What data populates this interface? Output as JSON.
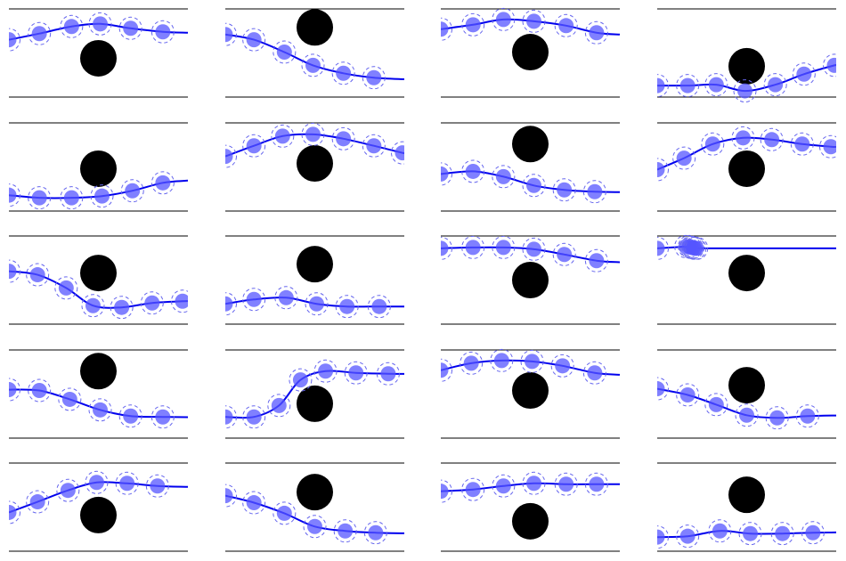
{
  "chart_data": {
    "type": "scatter",
    "description_free": true,
    "layout": {
      "rows": 5,
      "cols": 4
    },
    "colors": {
      "trajectory": "#0000ee",
      "disc_fill": "#5555ff",
      "disc_ring": "#6666ee",
      "obstacle": "#000000",
      "boundary": "#000000"
    },
    "x_range": [
      0,
      1
    ],
    "y_range": [
      0,
      1
    ],
    "panels": [
      {
        "name": "r1c1",
        "obstacle": [
          0.5,
          0.44
        ],
        "discs": [
          [
            0.0,
            0.65
          ],
          [
            0.17,
            0.72
          ],
          [
            0.35,
            0.8
          ],
          [
            0.51,
            0.83
          ],
          [
            0.68,
            0.78
          ],
          [
            0.86,
            0.74
          ]
        ]
      },
      {
        "name": "r1c2",
        "obstacle": [
          0.5,
          0.79
        ],
        "discs": [
          [
            0.0,
            0.71
          ],
          [
            0.16,
            0.65
          ],
          [
            0.33,
            0.51
          ],
          [
            0.49,
            0.36
          ],
          [
            0.66,
            0.27
          ],
          [
            0.83,
            0.22
          ]
        ]
      },
      {
        "name": "r1c3",
        "obstacle": [
          0.5,
          0.51
        ],
        "discs": [
          [
            0.0,
            0.77
          ],
          [
            0.18,
            0.82
          ],
          [
            0.35,
            0.88
          ],
          [
            0.52,
            0.86
          ],
          [
            0.7,
            0.81
          ],
          [
            0.87,
            0.73
          ]
        ]
      },
      {
        "name": "r1c4",
        "obstacle": [
          0.5,
          0.35
        ],
        "discs": [
          [
            0.0,
            0.13
          ],
          [
            0.17,
            0.13
          ],
          [
            0.33,
            0.14
          ],
          [
            0.49,
            0.07
          ],
          [
            0.66,
            0.14
          ],
          [
            0.82,
            0.26
          ],
          [
            0.99,
            0.36
          ]
        ]
      },
      {
        "name": "r2c1",
        "obstacle": [
          0.5,
          0.48
        ],
        "discs": [
          [
            0.0,
            0.18
          ],
          [
            0.17,
            0.15
          ],
          [
            0.35,
            0.15
          ],
          [
            0.52,
            0.17
          ],
          [
            0.69,
            0.23
          ],
          [
            0.86,
            0.32
          ]
        ]
      },
      {
        "name": "r2c2",
        "obstacle": [
          0.5,
          0.54
        ],
        "discs": [
          [
            0.0,
            0.62
          ],
          [
            0.16,
            0.74
          ],
          [
            0.32,
            0.85
          ],
          [
            0.49,
            0.87
          ],
          [
            0.66,
            0.82
          ],
          [
            0.83,
            0.74
          ],
          [
            0.99,
            0.66
          ]
        ]
      },
      {
        "name": "r2c3",
        "obstacle": [
          0.5,
          0.76
        ],
        "discs": [
          [
            0.0,
            0.42
          ],
          [
            0.18,
            0.45
          ],
          [
            0.35,
            0.39
          ],
          [
            0.52,
            0.29
          ],
          [
            0.69,
            0.24
          ],
          [
            0.86,
            0.22
          ]
        ]
      },
      {
        "name": "r2c4",
        "obstacle": [
          0.5,
          0.48
        ],
        "discs": [
          [
            0.0,
            0.47
          ],
          [
            0.15,
            0.6
          ],
          [
            0.31,
            0.76
          ],
          [
            0.48,
            0.83
          ],
          [
            0.64,
            0.81
          ],
          [
            0.81,
            0.76
          ],
          [
            0.97,
            0.73
          ]
        ]
      },
      {
        "name": "r3c1",
        "obstacle": [
          0.5,
          0.58
        ],
        "discs": [
          [
            0.0,
            0.6
          ],
          [
            0.16,
            0.56
          ],
          [
            0.32,
            0.41
          ],
          [
            0.47,
            0.21
          ],
          [
            0.63,
            0.19
          ],
          [
            0.8,
            0.24
          ],
          [
            0.97,
            0.26
          ]
        ]
      },
      {
        "name": "r3c2",
        "obstacle": [
          0.5,
          0.68
        ],
        "discs": [
          [
            0.0,
            0.23
          ],
          [
            0.16,
            0.28
          ],
          [
            0.34,
            0.3
          ],
          [
            0.51,
            0.23
          ],
          [
            0.68,
            0.2
          ],
          [
            0.86,
            0.2
          ]
        ]
      },
      {
        "name": "r3c3",
        "obstacle": [
          0.5,
          0.5
        ],
        "discs": [
          [
            0.0,
            0.86
          ],
          [
            0.18,
            0.87
          ],
          [
            0.35,
            0.87
          ],
          [
            0.52,
            0.85
          ],
          [
            0.69,
            0.79
          ],
          [
            0.87,
            0.72
          ]
        ]
      },
      {
        "name": "r3c4",
        "obstacle": [
          0.5,
          0.58
        ],
        "discs": [
          [
            0.0,
            0.86
          ],
          [
            0.16,
            0.88
          ],
          [
            0.18,
            0.88
          ],
          [
            0.19,
            0.87
          ],
          [
            0.2,
            0.87
          ],
          [
            0.21,
            0.86
          ],
          [
            0.22,
            0.86
          ]
        ]
      },
      {
        "name": "r4c1",
        "obstacle": [
          0.5,
          0.76
        ],
        "discs": [
          [
            0.0,
            0.55
          ],
          [
            0.17,
            0.54
          ],
          [
            0.34,
            0.44
          ],
          [
            0.51,
            0.32
          ],
          [
            0.68,
            0.25
          ],
          [
            0.86,
            0.24
          ]
        ]
      },
      {
        "name": "r4c2",
        "obstacle": [
          0.5,
          0.39
        ],
        "discs": [
          [
            0.0,
            0.24
          ],
          [
            0.16,
            0.24
          ],
          [
            0.3,
            0.37
          ],
          [
            0.42,
            0.66
          ],
          [
            0.56,
            0.76
          ],
          [
            0.73,
            0.74
          ],
          [
            0.91,
            0.73
          ]
        ]
      },
      {
        "name": "r4c3",
        "obstacle": [
          0.5,
          0.54
        ],
        "discs": [
          [
            0.0,
            0.77
          ],
          [
            0.17,
            0.85
          ],
          [
            0.34,
            0.88
          ],
          [
            0.51,
            0.87
          ],
          [
            0.68,
            0.82
          ],
          [
            0.86,
            0.74
          ]
        ]
      },
      {
        "name": "r4c4",
        "obstacle": [
          0.5,
          0.6
        ],
        "discs": [
          [
            0.0,
            0.56
          ],
          [
            0.17,
            0.49
          ],
          [
            0.33,
            0.38
          ],
          [
            0.5,
            0.26
          ],
          [
            0.67,
            0.23
          ],
          [
            0.84,
            0.25
          ]
        ]
      },
      {
        "name": "r5c1",
        "obstacle": [
          0.5,
          0.41
        ],
        "discs": [
          [
            0.0,
            0.44
          ],
          [
            0.16,
            0.56
          ],
          [
            0.33,
            0.69
          ],
          [
            0.49,
            0.78
          ],
          [
            0.66,
            0.77
          ],
          [
            0.83,
            0.74
          ]
        ]
      },
      {
        "name": "r5c2",
        "obstacle": [
          0.5,
          0.67
        ],
        "discs": [
          [
            0.0,
            0.63
          ],
          [
            0.16,
            0.55
          ],
          [
            0.33,
            0.43
          ],
          [
            0.5,
            0.28
          ],
          [
            0.67,
            0.23
          ],
          [
            0.84,
            0.21
          ]
        ]
      },
      {
        "name": "r5c3",
        "obstacle": [
          0.5,
          0.34
        ],
        "discs": [
          [
            0.0,
            0.68
          ],
          [
            0.18,
            0.7
          ],
          [
            0.35,
            0.74
          ],
          [
            0.52,
            0.77
          ],
          [
            0.7,
            0.76
          ],
          [
            0.87,
            0.76
          ]
        ]
      },
      {
        "name": "r5c4",
        "obstacle": [
          0.5,
          0.64
        ],
        "discs": [
          [
            0.0,
            0.16
          ],
          [
            0.17,
            0.17
          ],
          [
            0.35,
            0.23
          ],
          [
            0.52,
            0.2
          ],
          [
            0.7,
            0.2
          ],
          [
            0.87,
            0.21
          ]
        ]
      }
    ]
  }
}
